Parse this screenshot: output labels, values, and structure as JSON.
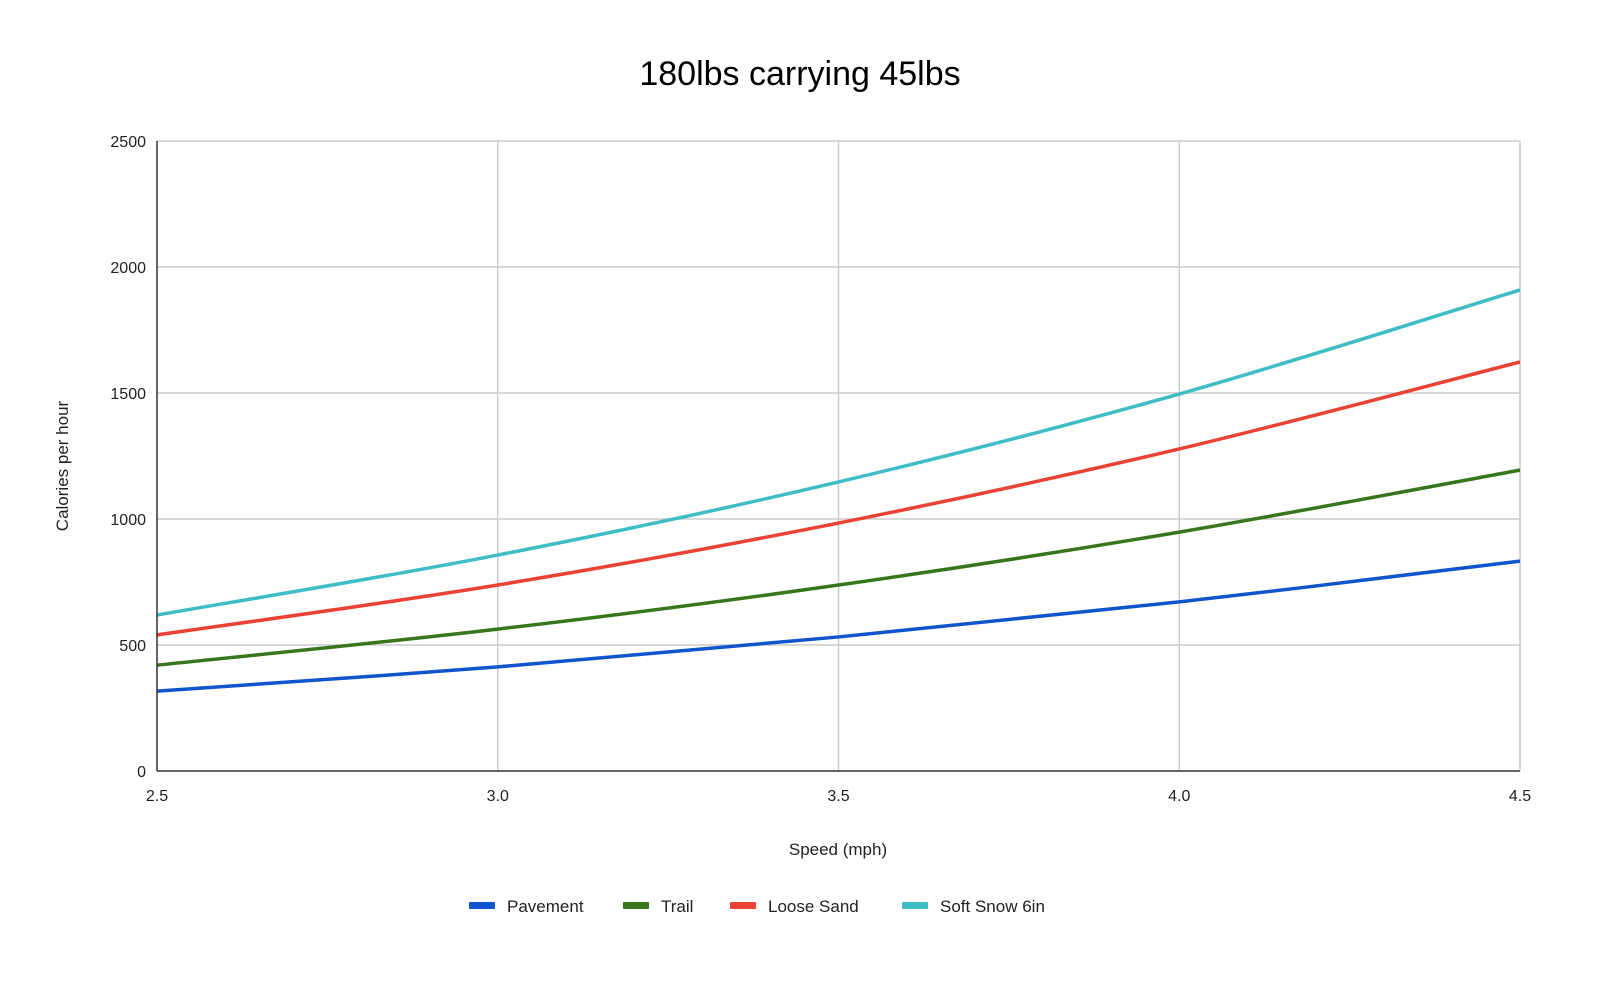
{
  "chart_data": {
    "type": "line",
    "title": "180lbs carrying 45lbs",
    "xlabel": "Speed (mph)",
    "ylabel": "Calories per hour",
    "xlim": [
      2.5,
      4.5
    ],
    "ylim": [
      0,
      2500
    ],
    "x_ticks": [
      "2.5",
      "3.0",
      "3.5",
      "4.0",
      "4.5"
    ],
    "y_ticks": [
      "0",
      "500",
      "1000",
      "1500",
      "2000",
      "2500"
    ],
    "grid": true,
    "legend_position": "bottom",
    "x": [
      2.5,
      3.0,
      3.5,
      4.0,
      4.5
    ],
    "series": [
      {
        "name": "Pavement",
        "color": "#1155cc",
        "values": [
          317,
          413,
          532,
          671,
          833
        ]
      },
      {
        "name": "Trail",
        "color": "#38761d",
        "values": [
          420,
          563,
          738,
          948,
          1194
        ]
      },
      {
        "name": "Loose Sand",
        "color": "#ea4335",
        "values": [
          540,
          738,
          984,
          1278,
          1623
        ]
      },
      {
        "name": "Soft Snow 6in",
        "color": "#3fbdc6",
        "values": [
          619,
          857,
          1147,
          1496,
          1909
        ]
      }
    ]
  }
}
